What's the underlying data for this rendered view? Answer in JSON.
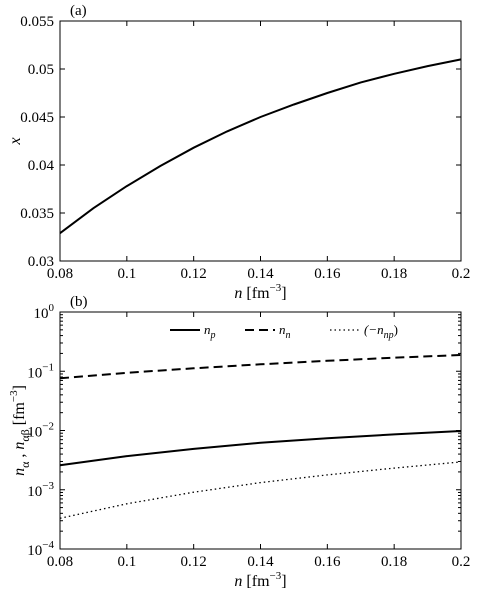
{
  "chart_data": [
    {
      "type": "line",
      "panel_label": "(a)",
      "xlabel": "n [fm−3]",
      "xlabel_parts": {
        "var": "n",
        "unit_pre": " [fm",
        "unit_sup": "−3",
        "unit_post": "]"
      },
      "ylabel": "x",
      "xlim": [
        0.08,
        0.2
      ],
      "ylim": [
        0.03,
        0.055
      ],
      "x_ticks": [
        0.08,
        0.1,
        0.12,
        0.14,
        0.16,
        0.18,
        0.2
      ],
      "x_tick_labels": [
        "0.08",
        "0.1",
        "0.12",
        "0.14",
        "0.16",
        "0.18",
        "0.2"
      ],
      "y_ticks": [
        0.03,
        0.035,
        0.04,
        0.045,
        0.05,
        0.055
      ],
      "y_tick_labels": [
        "0.03",
        "0.035",
        "0.04",
        "0.045",
        "0.05",
        "0.055"
      ],
      "grid": false,
      "series": [
        {
          "style": "solid",
          "x": [
            0.08,
            0.09,
            0.1,
            0.11,
            0.12,
            0.13,
            0.14,
            0.15,
            0.16,
            0.17,
            0.18,
            0.19,
            0.2
          ],
          "y": [
            0.0329,
            0.0355,
            0.0378,
            0.0399,
            0.0418,
            0.0435,
            0.045,
            0.0463,
            0.0475,
            0.0486,
            0.0495,
            0.0503,
            0.051
          ]
        }
      ]
    },
    {
      "type": "line",
      "panel_label": "(b)",
      "xlabel": "n [fm−3]",
      "xlabel_parts": {
        "var": "n",
        "unit_pre": " [fm",
        "unit_sup": "−3",
        "unit_post": "]"
      },
      "ylabel": "nα , nαβ [fm−3]",
      "ylabel_parts": {
        "a": "n",
        "a_sub": "α",
        "sep": " , ",
        "b": "n",
        "b_sub": "αβ",
        "unit_pre": " [fm",
        "unit_sup": "−3",
        "unit_post": "]"
      },
      "xlim": [
        0.08,
        0.2
      ],
      "ylim": [
        0.0001,
        1
      ],
      "y_scale": "log",
      "x_ticks": [
        0.08,
        0.1,
        0.12,
        0.14,
        0.16,
        0.18,
        0.2
      ],
      "x_tick_labels": [
        "0.08",
        "0.1",
        "0.12",
        "0.14",
        "0.16",
        "0.18",
        "0.2"
      ],
      "y_ticks": [
        0.0001,
        0.001,
        0.01,
        0.1,
        1
      ],
      "y_tick_labels": [
        {
          "base": "10",
          "exp": "−4"
        },
        {
          "base": "10",
          "exp": "−3"
        },
        {
          "base": "10",
          "exp": "−2"
        },
        {
          "base": "10",
          "exp": "−1"
        },
        {
          "base": "10",
          "exp": "0"
        }
      ],
      "grid": false,
      "legend_position": "top",
      "legend": [
        {
          "label": "n",
          "sub": "p",
          "style": "solid"
        },
        {
          "label": "n",
          "sub": "n",
          "style": "dashed"
        },
        {
          "label": "(−n",
          "sub": "np",
          "suffix": ")",
          "style": "dotted"
        }
      ],
      "series": [
        {
          "legend_index": 0,
          "style": "solid",
          "x": [
            0.08,
            0.1,
            0.12,
            0.14,
            0.16,
            0.18,
            0.2
          ],
          "y": [
            0.0026,
            0.0037,
            0.0049,
            0.0062,
            0.0074,
            0.0086,
            0.0098
          ]
        },
        {
          "legend_index": 1,
          "style": "dashed",
          "x": [
            0.08,
            0.1,
            0.12,
            0.14,
            0.16,
            0.18,
            0.2
          ],
          "y": [
            0.076,
            0.094,
            0.112,
            0.131,
            0.15,
            0.169,
            0.188
          ]
        },
        {
          "legend_index": 2,
          "style": "dotted",
          "x": [
            0.08,
            0.1,
            0.12,
            0.14,
            0.16,
            0.18,
            0.2
          ],
          "y": [
            0.00033,
            0.00058,
            0.00091,
            0.00132,
            0.00178,
            0.00232,
            0.00295
          ]
        }
      ]
    }
  ]
}
